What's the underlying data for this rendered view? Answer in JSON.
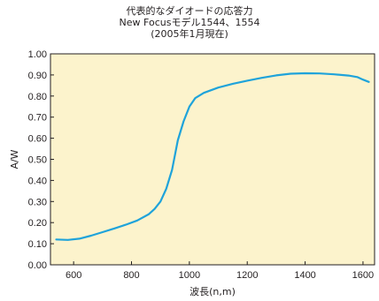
{
  "chart_data": {
    "type": "line",
    "title_lines": [
      "代表的なダイオードの応答力",
      "New Focusモデル1544、1554",
      "(2005年1月現在)"
    ],
    "xlabel": "波長(n,m)",
    "ylabel": "A/W",
    "xlim": [
      520,
      1640
    ],
    "ylim": [
      0,
      1.0
    ],
    "x_ticks": [
      600,
      800,
      1000,
      1200,
      1400,
      1600
    ],
    "x_tick_labels": [
      "600",
      "800",
      "1000",
      "1200",
      "1400",
      "1600"
    ],
    "y_ticks": [
      0,
      0.1,
      0.2,
      0.3,
      0.4,
      0.5,
      0.6,
      0.7,
      0.8,
      0.9,
      1.0
    ],
    "y_tick_labels": [
      "0.00",
      "0.10",
      "0.20",
      "0.30",
      "0.40",
      "0.50",
      "0.60",
      "0.70",
      "0.80",
      "0.90",
      "1.00"
    ],
    "grid": false,
    "colors": {
      "plot_background": "#fcf3cc",
      "line": "#1fa3da",
      "axis": "#231f20"
    },
    "series": [
      {
        "x": [
          540,
          580,
          620,
          660,
          700,
          740,
          780,
          820,
          860,
          880,
          900,
          920,
          940,
          960,
          980,
          1000,
          1020,
          1050,
          1100,
          1150,
          1200,
          1250,
          1300,
          1350,
          1400,
          1450,
          1500,
          1550,
          1580,
          1600,
          1620
        ],
        "values": [
          0.12,
          0.118,
          0.124,
          0.138,
          0.155,
          0.172,
          0.19,
          0.21,
          0.24,
          0.265,
          0.3,
          0.36,
          0.45,
          0.59,
          0.68,
          0.75,
          0.79,
          0.815,
          0.84,
          0.858,
          0.873,
          0.886,
          0.898,
          0.906,
          0.908,
          0.907,
          0.903,
          0.897,
          0.89,
          0.878,
          0.867
        ]
      }
    ]
  }
}
